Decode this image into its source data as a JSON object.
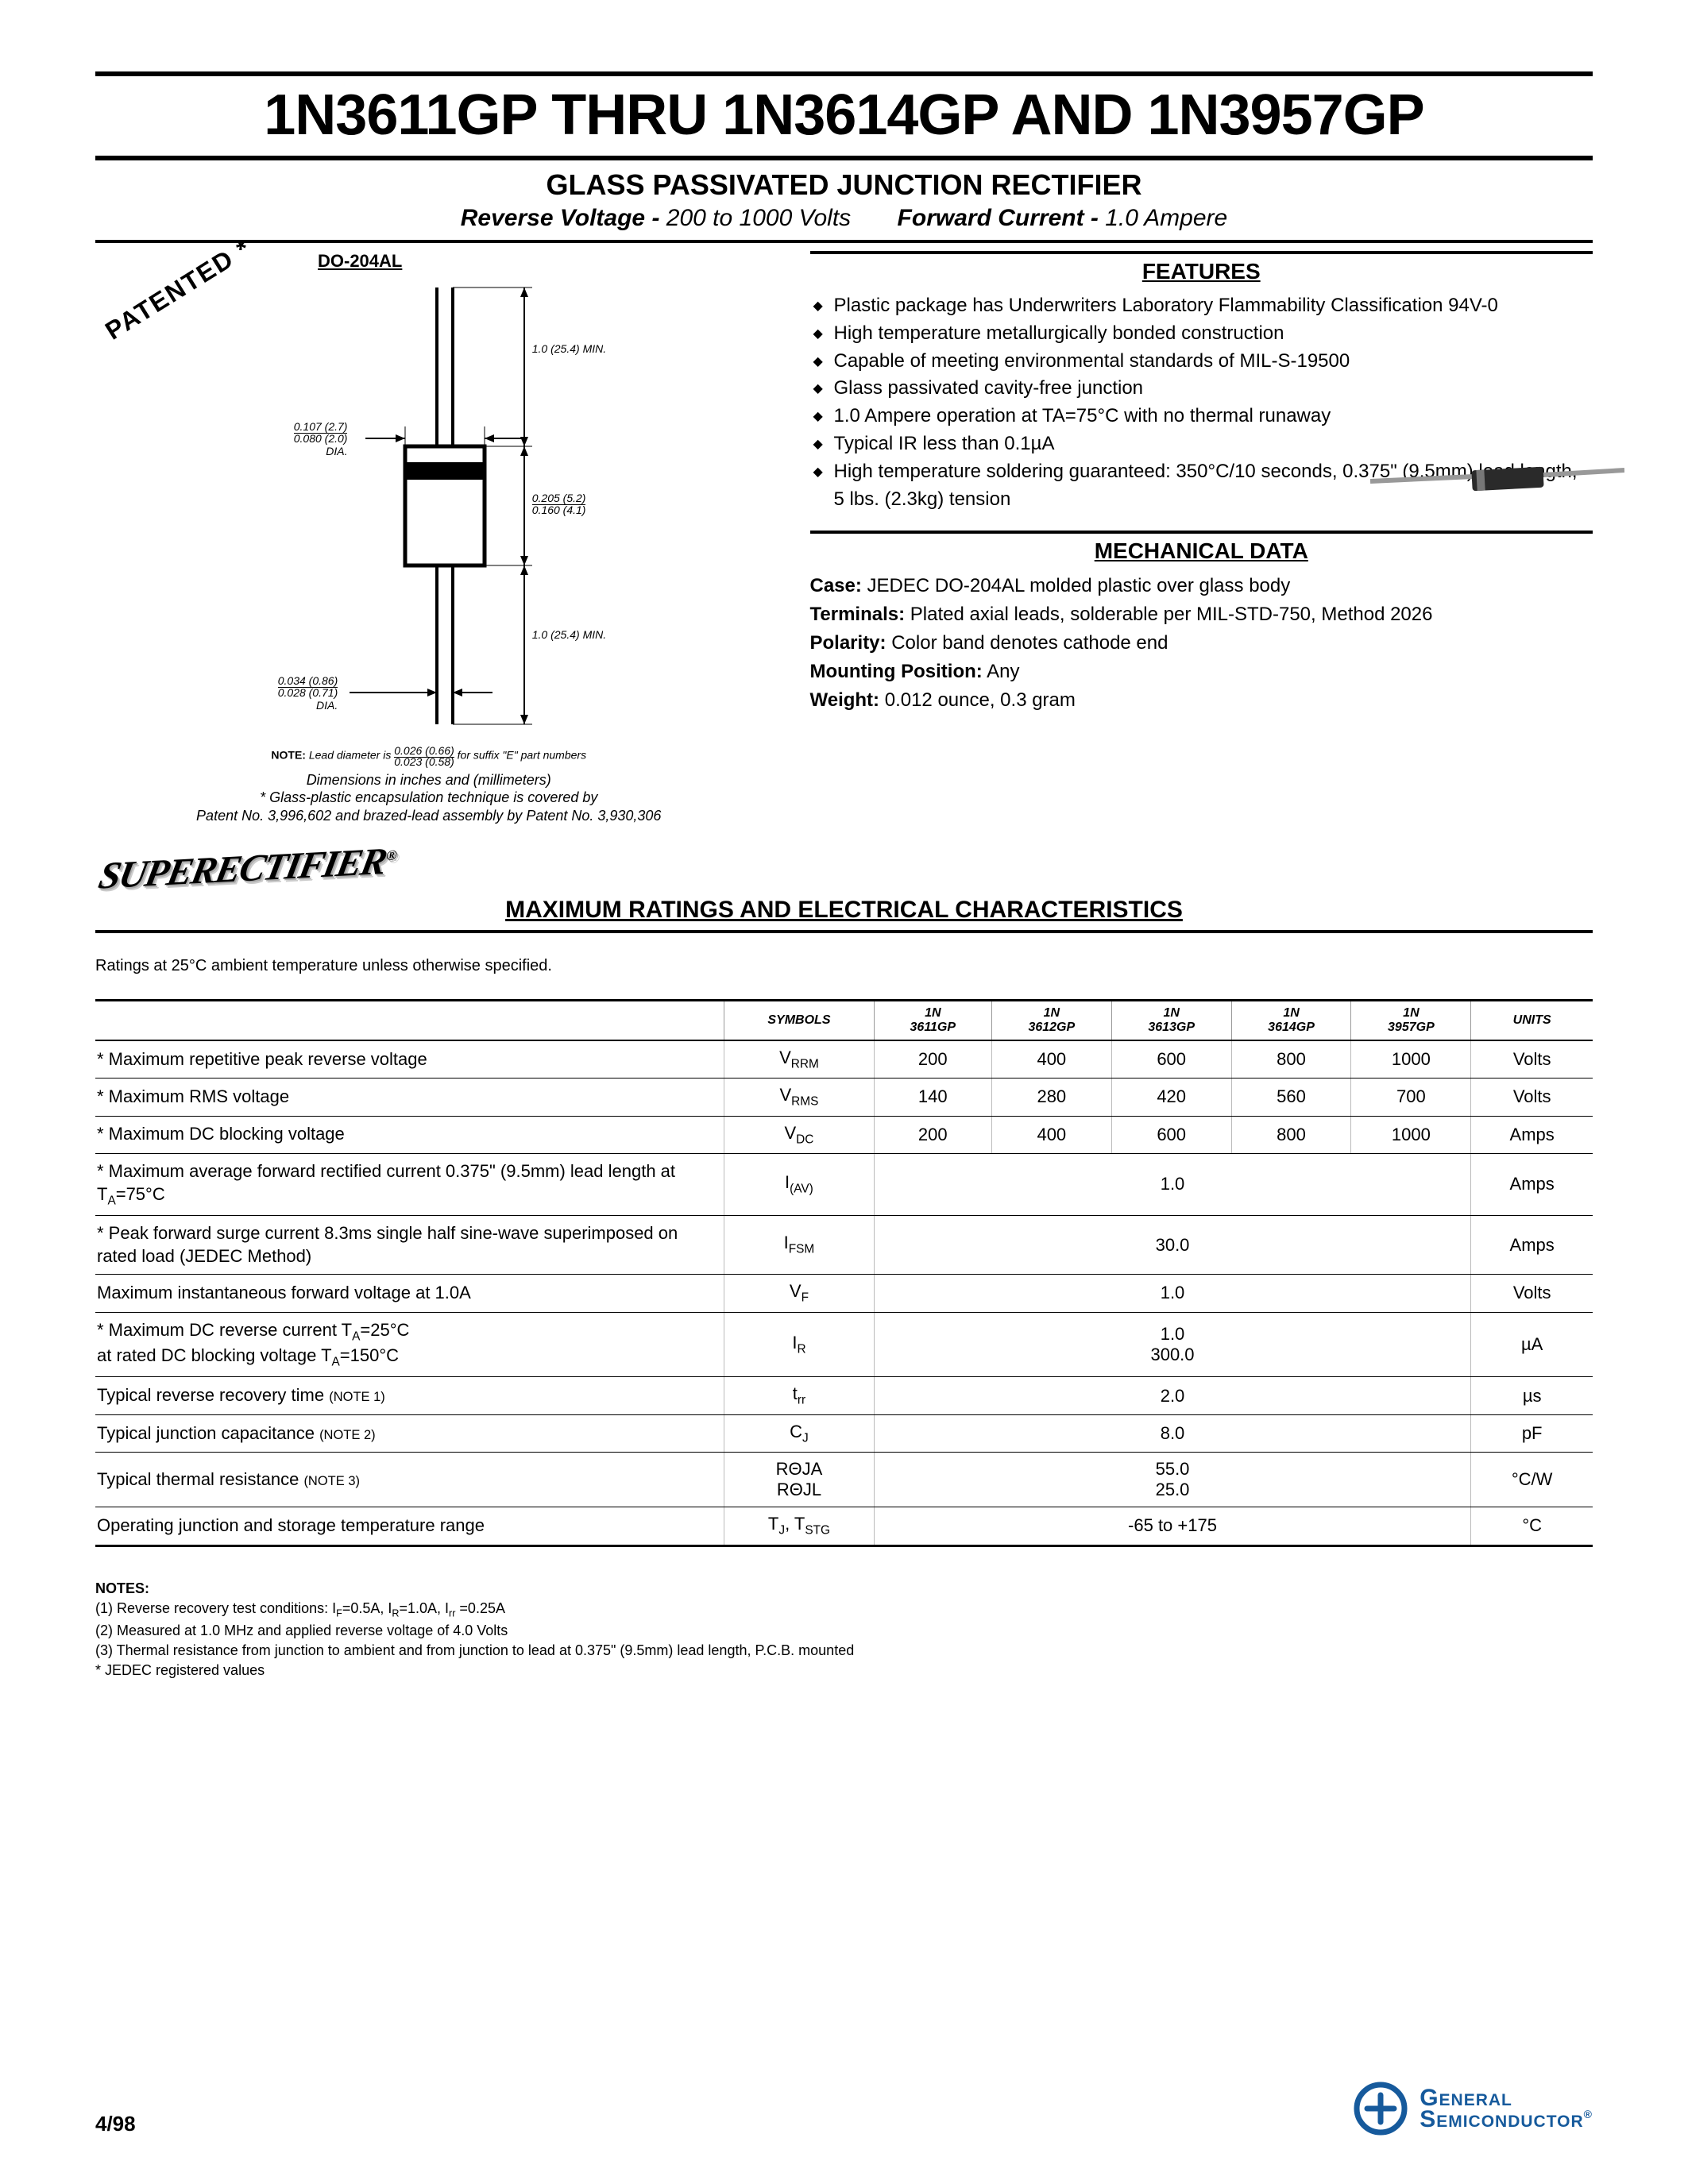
{
  "header": {
    "title": "1N3611GP THRU 1N3614GP AND 1N3957GP",
    "subtitle": "GLASS PASSIVATED JUNCTION RECTIFIER",
    "rev_voltage_label": "Reverse Voltage -",
    "rev_voltage_value": "200 to 1000 Volts",
    "fwd_current_label": "Forward Current -",
    "fwd_current_value": "1.0 Ampere"
  },
  "package": {
    "label": "DO-204AL",
    "patented": "PATENTED *",
    "dims": {
      "lead_len": "1.0 (25.4) MIN.",
      "lead_dia": "0.107 (2.7)\n0.080 (2.0)\nDIA.",
      "body_len": "0.205 (5.2)\n0.160 (4.1)",
      "lead_dia2": "0.034 (0.86)\n0.028 (0.71)\nDIA.",
      "note": "Lead diameter is",
      "note_frac_top": "0.026 (0.66)",
      "note_frac_bot": "0.023 (0.58)",
      "note_suffix": "for suffix \"E\" part numbers"
    },
    "caption": "Dimensions in inches and (millimeters)",
    "patent_note_1": "* Glass-plastic encapsulation technique is covered by",
    "patent_note_2": "Patent No. 3,996,602 and brazed-lead assembly by Patent No. 3,930,306",
    "logo": "SUPERECTIFIER"
  },
  "features": {
    "heading": "FEATURES",
    "items": [
      "Plastic package has Underwriters Laboratory Flammability Classification 94V-0",
      "High temperature metallurgically bonded construction",
      "Capable of meeting environmental standards of MIL-S-19500",
      "Glass passivated cavity-free junction",
      "1.0 Ampere operation at TA=75°C with no thermal runaway",
      "Typical IR less than 0.1µA",
      "High temperature soldering guaranteed: 350°C/10 seconds, 0.375\" (9.5mm) lead length, 5 lbs. (2.3kg) tension"
    ]
  },
  "mechanical": {
    "heading": "MECHANICAL DATA",
    "case_label": "Case:",
    "case": "JEDEC DO-204AL molded plastic over glass body",
    "terminals_label": "Terminals:",
    "terminals": "Plated axial leads, solderable per MIL-STD-750, Method 2026",
    "polarity_label": "Polarity:",
    "polarity": "Color band denotes cathode end",
    "mounting_label": "Mounting Position:",
    "mounting": "Any",
    "weight_label": "Weight:",
    "weight": "0.012 ounce, 0.3 gram"
  },
  "ratings": {
    "heading": "MAXIMUM RATINGS AND ELECTRICAL CHARACTERISTICS",
    "condition": "Ratings at 25°C ambient temperature unless otherwise specified.",
    "columns": [
      "",
      "SYMBOLS",
      "1N 3611GP",
      "1N 3612GP",
      "1N 3613GP",
      "1N 3614GP",
      "1N 3957GP",
      "UNITS"
    ],
    "rows": [
      {
        "param": "* Maximum repetitive peak reverse voltage",
        "sym": "VRRM",
        "v": [
          "200",
          "400",
          "600",
          "800",
          "1000"
        ],
        "unit": "Volts"
      },
      {
        "param": "* Maximum RMS voltage",
        "sym": "VRMS",
        "v": [
          "140",
          "280",
          "420",
          "560",
          "700"
        ],
        "unit": "Volts"
      },
      {
        "param": "* Maximum DC blocking voltage",
        "sym": "VDC",
        "v": [
          "200",
          "400",
          "600",
          "800",
          "1000"
        ],
        "unit": "Amps"
      },
      {
        "param": "* Maximum average forward rectified current 0.375\" (9.5mm) lead length at TA=75°C",
        "sym": "I(AV)",
        "merged": "1.0",
        "unit": "Amps"
      },
      {
        "param": "* Peak forward surge current 8.3ms single half sine-wave superimposed on rated load (JEDEC Method)",
        "sym": "IFSM",
        "merged": "30.0",
        "unit": "Amps"
      },
      {
        "param": "Maximum instantaneous forward voltage at 1.0A",
        "sym": "VF",
        "merged": "1.0",
        "unit": "Volts"
      },
      {
        "param": "* Maximum DC reverse current            TA=25°C\nat rated DC blocking voltage              TA=150°C",
        "sym": "IR",
        "merged": "1.0\n300.0",
        "unit": "µA"
      },
      {
        "param": "Typical reverse recovery time (NOTE 1)",
        "sym": "trr",
        "merged": "2.0",
        "unit": "µs"
      },
      {
        "param": "Typical junction capacitance (NOTE 2)",
        "sym": "CJ",
        "merged": "8.0",
        "unit": "pF"
      },
      {
        "param": "Typical thermal resistance (NOTE 3)",
        "sym": "RΘJA\nRΘJL",
        "merged": "55.0\n25.0",
        "unit": "°C/W"
      },
      {
        "param": "Operating junction and storage temperature range",
        "sym": "TJ, TSTG",
        "merged": "-65 to +175",
        "unit": "°C"
      }
    ]
  },
  "notes": {
    "heading": "NOTES:",
    "items": [
      "(1) Reverse recovery test conditions: IF=0.5A, IR=1.0A, Irr =0.25A",
      "(2) Measured at 1.0 MHz and applied reverse voltage of 4.0 Volts",
      "(3) Thermal resistance from junction to ambient and from junction to lead at 0.375\" (9.5mm) lead length, P.C.B. mounted",
      "* JEDEC registered values"
    ]
  },
  "footer": {
    "date": "4/98",
    "company_top": "General",
    "company_bot": "Semiconductor"
  },
  "colors": {
    "brand": "#165a9c",
    "rule": "#000000"
  }
}
